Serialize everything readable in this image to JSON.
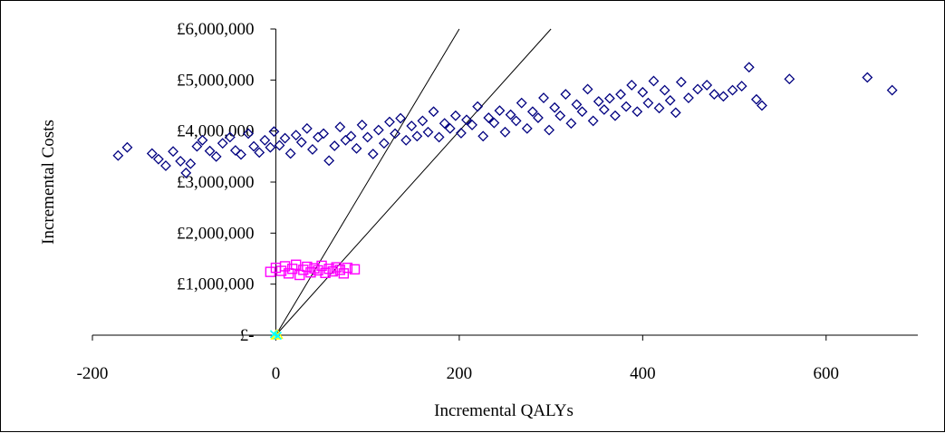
{
  "chart_data": {
    "type": "scatter",
    "title": "",
    "xlabel": "Incremental QALYs",
    "ylabel": "Incremental Costs",
    "xlim": [
      -200,
      700
    ],
    "ylim": [
      0,
      6000000
    ],
    "x_ticks": [
      -200,
      0,
      200,
      400,
      600
    ],
    "x_tick_labels": [
      "-200",
      "0",
      "200",
      "400",
      "600"
    ],
    "y_ticks": [
      0,
      1000000,
      2000000,
      3000000,
      4000000,
      5000000,
      6000000
    ],
    "y_tick_labels": [
      "£-",
      "£1,000,000",
      "£2,000,000",
      "£3,000,000",
      "£4,000,000",
      "£5,000,000",
      "£6,000,000"
    ],
    "grid": false,
    "legend": "none",
    "reference_lines": [
      {
        "cost_per_qaly": 30000,
        "from": [
          0,
          0
        ],
        "to": [
          200,
          6000000
        ]
      },
      {
        "cost_per_qaly": 20000,
        "from": [
          0,
          0
        ],
        "to": [
          300,
          6000000
        ]
      }
    ],
    "series": [
      {
        "marker": "diamond",
        "color": "#000080",
        "points": [
          [
            -172,
            3520000
          ],
          [
            -162,
            3680000
          ],
          [
            -135,
            3560000
          ],
          [
            -128,
            3450000
          ],
          [
            -120,
            3320000
          ],
          [
            -112,
            3600000
          ],
          [
            -104,
            3410000
          ],
          [
            -98,
            3180000
          ],
          [
            -93,
            3360000
          ],
          [
            -86,
            3700000
          ],
          [
            -80,
            3820000
          ],
          [
            -72,
            3610000
          ],
          [
            -65,
            3500000
          ],
          [
            -58,
            3760000
          ],
          [
            -50,
            3880000
          ],
          [
            -44,
            3620000
          ],
          [
            -38,
            3540000
          ],
          [
            -30,
            3950000
          ],
          [
            -24,
            3700000
          ],
          [
            -18,
            3580000
          ],
          [
            -12,
            3820000
          ],
          [
            -6,
            3680000
          ],
          [
            -2,
            3990000
          ],
          [
            4,
            3720000
          ],
          [
            10,
            3860000
          ],
          [
            16,
            3560000
          ],
          [
            22,
            3920000
          ],
          [
            28,
            3780000
          ],
          [
            34,
            4050000
          ],
          [
            40,
            3640000
          ],
          [
            46,
            3880000
          ],
          [
            52,
            3950000
          ],
          [
            58,
            3420000
          ],
          [
            64,
            3710000
          ],
          [
            70,
            4080000
          ],
          [
            76,
            3820000
          ],
          [
            82,
            3900000
          ],
          [
            88,
            3660000
          ],
          [
            94,
            4120000
          ],
          [
            100,
            3880000
          ],
          [
            106,
            3550000
          ],
          [
            112,
            4020000
          ],
          [
            118,
            3760000
          ],
          [
            124,
            4180000
          ],
          [
            130,
            3950000
          ],
          [
            136,
            4250000
          ],
          [
            142,
            3820000
          ],
          [
            148,
            4100000
          ],
          [
            154,
            3900000
          ],
          [
            160,
            4200000
          ],
          [
            166,
            3980000
          ],
          [
            172,
            4380000
          ],
          [
            178,
            3880000
          ],
          [
            184,
            4150000
          ],
          [
            190,
            4050000
          ],
          [
            196,
            4300000
          ],
          [
            202,
            3960000
          ],
          [
            208,
            4220000
          ],
          [
            214,
            4120000
          ],
          [
            220,
            4480000
          ],
          [
            226,
            3900000
          ],
          [
            232,
            4260000
          ],
          [
            238,
            4160000
          ],
          [
            244,
            4400000
          ],
          [
            250,
            3980000
          ],
          [
            256,
            4320000
          ],
          [
            262,
            4200000
          ],
          [
            268,
            4550000
          ],
          [
            274,
            4050000
          ],
          [
            280,
            4380000
          ],
          [
            286,
            4260000
          ],
          [
            292,
            4650000
          ],
          [
            298,
            4020000
          ],
          [
            304,
            4460000
          ],
          [
            310,
            4300000
          ],
          [
            316,
            4720000
          ],
          [
            322,
            4150000
          ],
          [
            328,
            4520000
          ],
          [
            334,
            4380000
          ],
          [
            340,
            4820000
          ],
          [
            346,
            4200000
          ],
          [
            352,
            4580000
          ],
          [
            358,
            4420000
          ],
          [
            364,
            4640000
          ],
          [
            370,
            4300000
          ],
          [
            376,
            4720000
          ],
          [
            382,
            4480000
          ],
          [
            388,
            4900000
          ],
          [
            394,
            4380000
          ],
          [
            400,
            4760000
          ],
          [
            406,
            4550000
          ],
          [
            412,
            4980000
          ],
          [
            418,
            4450000
          ],
          [
            424,
            4800000
          ],
          [
            430,
            4600000
          ],
          [
            436,
            4360000
          ],
          [
            442,
            4960000
          ],
          [
            450,
            4650000
          ],
          [
            460,
            4820000
          ],
          [
            470,
            4900000
          ],
          [
            478,
            4720000
          ],
          [
            488,
            4680000
          ],
          [
            498,
            4800000
          ],
          [
            508,
            4880000
          ],
          [
            516,
            5250000
          ],
          [
            524,
            4620000
          ],
          [
            530,
            4500000
          ],
          [
            560,
            5020000
          ],
          [
            645,
            5050000
          ],
          [
            672,
            4800000
          ]
        ]
      },
      {
        "marker": "square",
        "color": "#ff00ff",
        "points": [
          [
            -6,
            1240000
          ],
          [
            0,
            1320000
          ],
          [
            6,
            1260000
          ],
          [
            10,
            1350000
          ],
          [
            14,
            1210000
          ],
          [
            18,
            1300000
          ],
          [
            22,
            1380000
          ],
          [
            26,
            1180000
          ],
          [
            30,
            1280000
          ],
          [
            34,
            1340000
          ],
          [
            38,
            1230000
          ],
          [
            42,
            1310000
          ],
          [
            46,
            1270000
          ],
          [
            50,
            1360000
          ],
          [
            54,
            1220000
          ],
          [
            58,
            1300000
          ],
          [
            62,
            1250000
          ],
          [
            66,
            1330000
          ],
          [
            70,
            1280000
          ],
          [
            74,
            1210000
          ],
          [
            78,
            1320000
          ],
          [
            86,
            1290000
          ]
        ]
      },
      {
        "marker": "triangle",
        "color": "#ffff00",
        "points": [
          [
            0,
            0
          ],
          [
            2,
            10000
          ]
        ]
      },
      {
        "marker": "x",
        "color": "#00ffff",
        "points": [
          [
            -2,
            20000
          ],
          [
            2,
            -10000
          ]
        ]
      }
    ]
  }
}
